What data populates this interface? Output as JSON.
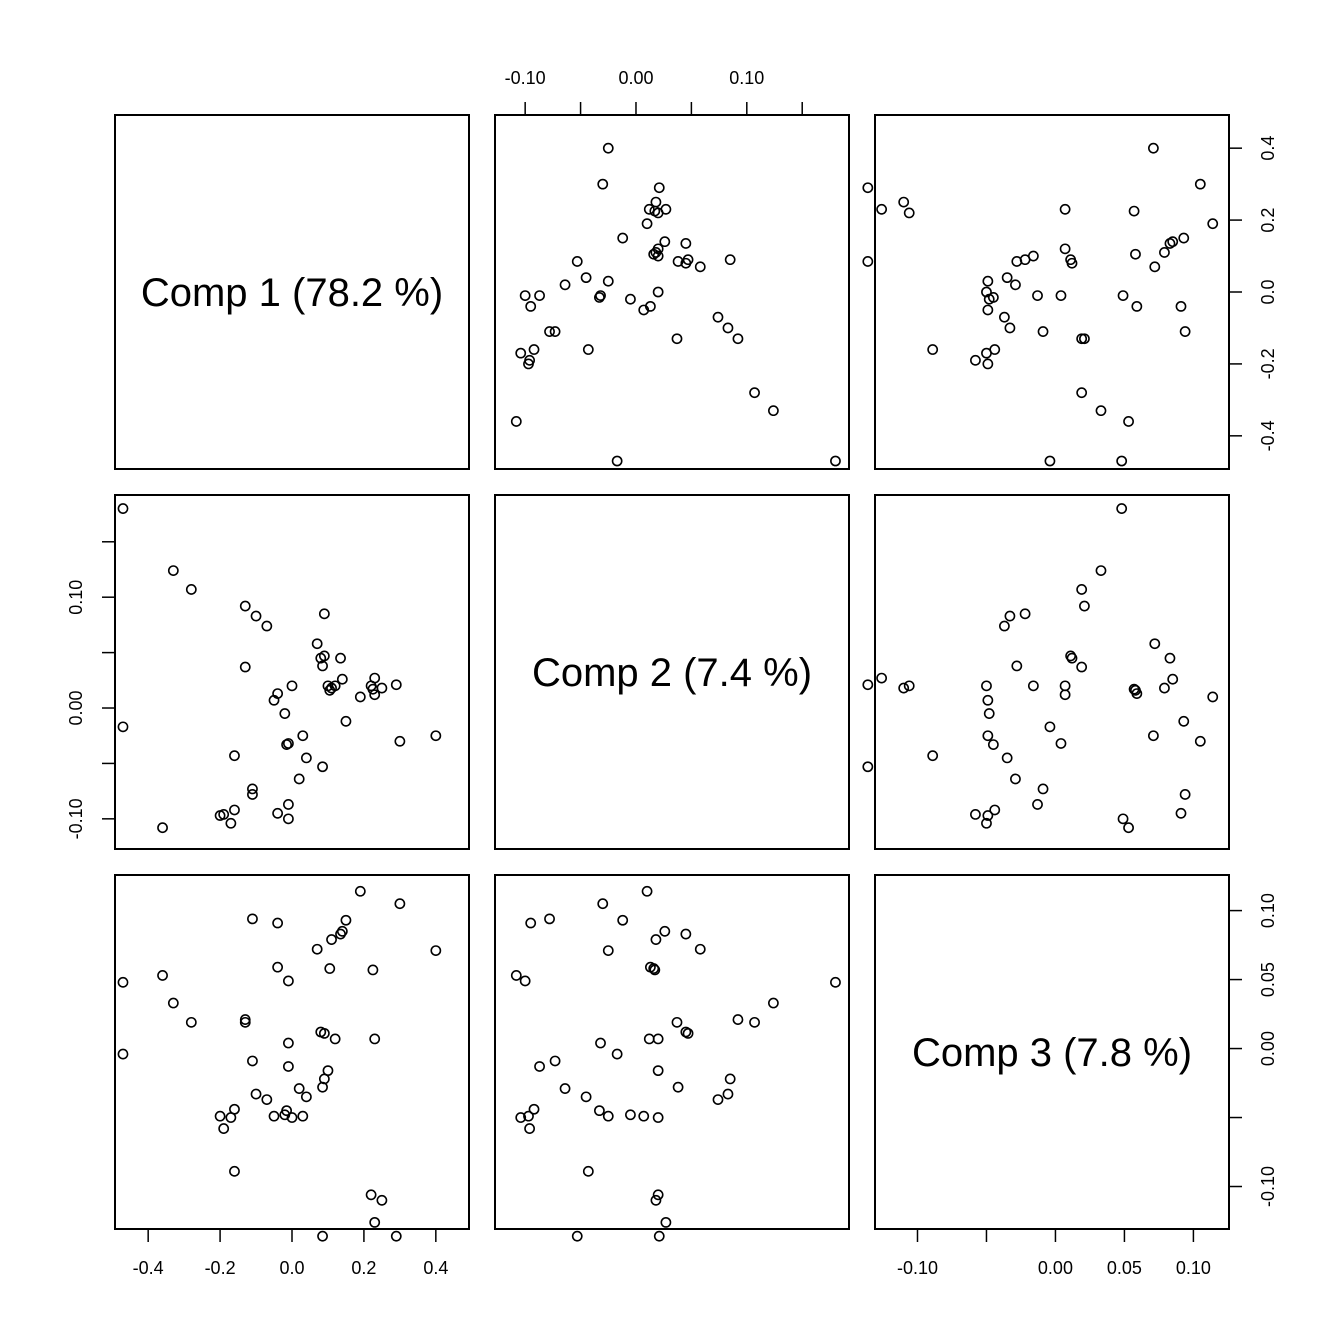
{
  "chart_data": {
    "type": "scatter",
    "layout": "pairs",
    "variables": [
      {
        "key": "c1",
        "label": "Comp 1 (78.2 %)",
        "lim": [
          -0.47,
          0.47
        ],
        "ticks": [
          -0.4,
          -0.2,
          0.0,
          0.2,
          0.4
        ],
        "tick_labels": [
          "-0.4",
          "-0.2",
          "0.0",
          "0.2",
          "0.4"
        ]
      },
      {
        "key": "c2",
        "label": "Comp 2 (7.4 %)",
        "lim": [
          -0.12,
          0.185
        ],
        "ticks": [
          -0.1,
          -0.05,
          0.0,
          0.05,
          0.1,
          0.15
        ],
        "tick_labels": [
          "-0.10",
          "",
          "0.00",
          "",
          "0.10",
          ""
        ]
      },
      {
        "key": "c3",
        "label": "Comp 3 (7.8 %)",
        "lim": [
          -0.125,
          0.12
        ],
        "ticks": [
          -0.1,
          -0.05,
          0.0,
          0.05,
          0.1
        ],
        "tick_labels": [
          "-0.10",
          "",
          "0.00",
          "0.05",
          "0.10"
        ]
      }
    ],
    "axes": {
      "c1_right": {
        "ticks": [
          -0.4,
          -0.2,
          0.0,
          0.2,
          0.4
        ],
        "tick_labels": [
          "-0.4",
          "-0.2",
          "0.0",
          "0.2",
          "0.4"
        ]
      },
      "c2_top": {
        "ticks": [
          -0.1,
          -0.05,
          0.0,
          0.05,
          0.1,
          0.15
        ],
        "tick_labels": [
          "-0.10",
          "",
          "0.00",
          "",
          "0.10",
          ""
        ]
      },
      "c2_left": {
        "ticks": [
          -0.1,
          -0.05,
          0.0,
          0.05,
          0.1,
          0.15
        ],
        "tick_labels": [
          "-0.10",
          "",
          "0.00",
          "",
          "0.10",
          ""
        ]
      },
      "c1_bottom": {
        "ticks": [
          -0.4,
          -0.2,
          0.0,
          0.2,
          0.4
        ],
        "tick_labels": [
          "-0.4",
          "-0.2",
          "0.0",
          "0.2",
          "0.4"
        ]
      },
      "c3_bottom": {
        "ticks": [
          -0.1,
          -0.05,
          0.0,
          0.05,
          0.1
        ],
        "tick_labels": [
          "-0.10",
          "",
          "0.00",
          "0.05",
          "0.10"
        ]
      },
      "c3_right": {
        "ticks": [
          -0.1,
          -0.05,
          0.0,
          0.05,
          0.1
        ],
        "tick_labels": [
          "-0.10",
          "",
          "0.00",
          "0.05",
          "0.10"
        ]
      }
    },
    "points": [
      {
        "c1": -0.47,
        "c2": 0.18,
        "c3": 0.048
      },
      {
        "c1": -0.47,
        "c2": -0.017,
        "c3": -0.004
      },
      {
        "c1": -0.36,
        "c2": -0.108,
        "c3": 0.053
      },
      {
        "c1": -0.33,
        "c2": 0.124,
        "c3": 0.033
      },
      {
        "c1": -0.28,
        "c2": 0.107,
        "c3": 0.019
      },
      {
        "c1": -0.2,
        "c2": -0.097,
        "c3": -0.049
      },
      {
        "c1": -0.19,
        "c2": -0.096,
        "c3": -0.058
      },
      {
        "c1": -0.17,
        "c2": -0.104,
        "c3": -0.05
      },
      {
        "c1": -0.16,
        "c2": -0.092,
        "c3": -0.044
      },
      {
        "c1": -0.16,
        "c2": -0.043,
        "c3": -0.089
      },
      {
        "c1": -0.13,
        "c2": 0.092,
        "c3": 0.021
      },
      {
        "c1": -0.13,
        "c2": 0.037,
        "c3": 0.019
      },
      {
        "c1": -0.11,
        "c2": -0.073,
        "c3": -0.009
      },
      {
        "c1": -0.11,
        "c2": -0.078,
        "c3": 0.094
      },
      {
        "c1": -0.1,
        "c2": 0.083,
        "c3": -0.033
      },
      {
        "c1": -0.07,
        "c2": 0.074,
        "c3": -0.037
      },
      {
        "c1": -0.05,
        "c2": 0.007,
        "c3": -0.049
      },
      {
        "c1": -0.04,
        "c2": 0.013,
        "c3": 0.059
      },
      {
        "c1": -0.04,
        "c2": -0.095,
        "c3": 0.091
      },
      {
        "c1": -0.02,
        "c2": -0.005,
        "c3": -0.048
      },
      {
        "c1": -0.015,
        "c2": -0.033,
        "c3": -0.045
      },
      {
        "c1": -0.01,
        "c2": -0.032,
        "c3": 0.004
      },
      {
        "c1": -0.01,
        "c2": -0.087,
        "c3": -0.013
      },
      {
        "c1": -0.01,
        "c2": -0.1,
        "c3": 0.049
      },
      {
        "c1": 0.0,
        "c2": 0.02,
        "c3": -0.05
      },
      {
        "c1": 0.02,
        "c2": -0.064,
        "c3": -0.029
      },
      {
        "c1": 0.03,
        "c2": -0.025,
        "c3": -0.049
      },
      {
        "c1": 0.04,
        "c2": -0.045,
        "c3": -0.035
      },
      {
        "c1": 0.07,
        "c2": 0.058,
        "c3": 0.072
      },
      {
        "c1": 0.08,
        "c2": 0.045,
        "c3": 0.012
      },
      {
        "c1": 0.085,
        "c2": 0.038,
        "c3": -0.028
      },
      {
        "c1": 0.085,
        "c2": -0.053,
        "c3": -0.136
      },
      {
        "c1": 0.09,
        "c2": 0.085,
        "c3": -0.022
      },
      {
        "c1": 0.09,
        "c2": 0.047,
        "c3": 0.011
      },
      {
        "c1": 0.1,
        "c2": 0.02,
        "c3": -0.016
      },
      {
        "c1": 0.105,
        "c2": 0.016,
        "c3": 0.058
      },
      {
        "c1": 0.11,
        "c2": 0.018,
        "c3": 0.079
      },
      {
        "c1": 0.12,
        "c2": 0.02,
        "c3": 0.007
      },
      {
        "c1": 0.135,
        "c2": 0.045,
        "c3": 0.083
      },
      {
        "c1": 0.14,
        "c2": 0.026,
        "c3": 0.085
      },
      {
        "c1": 0.15,
        "c2": -0.012,
        "c3": 0.093
      },
      {
        "c1": 0.19,
        "c2": 0.01,
        "c3": 0.114
      },
      {
        "c1": 0.22,
        "c2": 0.02,
        "c3": -0.106
      },
      {
        "c1": 0.225,
        "c2": 0.017,
        "c3": 0.057
      },
      {
        "c1": 0.23,
        "c2": 0.027,
        "c3": -0.126
      },
      {
        "c1": 0.23,
        "c2": 0.012,
        "c3": 0.007
      },
      {
        "c1": 0.25,
        "c2": 0.018,
        "c3": -0.11
      },
      {
        "c1": 0.29,
        "c2": 0.021,
        "c3": -0.136
      },
      {
        "c1": 0.3,
        "c2": -0.03,
        "c3": 0.105
      },
      {
        "c1": 0.4,
        "c2": -0.025,
        "c3": 0.071
      }
    ]
  }
}
